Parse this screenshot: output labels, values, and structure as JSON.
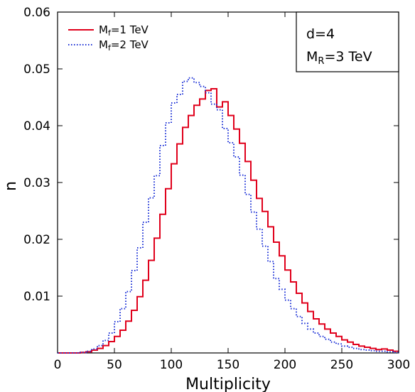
{
  "chart_data": {
    "type": "line",
    "style": "step-histogram",
    "xlabel": "Multiplicity",
    "ylabel": "n",
    "xlim": [
      0,
      300
    ],
    "ylim": [
      0,
      0.06
    ],
    "x_ticks": [
      0,
      50,
      100,
      150,
      200,
      250,
      300
    ],
    "y_ticks": [
      0.01,
      0.02,
      0.03,
      0.04,
      0.05,
      0.06
    ],
    "x_tick_labels": [
      "0",
      "50",
      "100",
      "150",
      "200",
      "250",
      "300"
    ],
    "y_tick_labels": [
      "0.01",
      "0.02",
      "0.03",
      "0.04",
      "0.05",
      "0.06"
    ],
    "grid": false,
    "legend_position": "top-left",
    "bin_width": 5,
    "annotations": {
      "line1": "d=4",
      "line2_main": "M",
      "line2_sub": "R",
      "line2_rest": "=3 TeV"
    },
    "series": [
      {
        "name_main": "M",
        "name_sub": "f",
        "name_rest": "=1 TeV",
        "color": "#e0001b",
        "linestyle": "solid",
        "x": [
          0,
          5,
          10,
          15,
          20,
          25,
          30,
          35,
          40,
          45,
          50,
          55,
          60,
          65,
          70,
          75,
          80,
          85,
          90,
          95,
          100,
          105,
          110,
          115,
          120,
          125,
          130,
          135,
          140,
          145,
          150,
          155,
          160,
          165,
          170,
          175,
          180,
          185,
          190,
          195,
          200,
          205,
          210,
          215,
          220,
          225,
          230,
          235,
          240,
          245,
          250,
          255,
          260,
          265,
          270,
          275,
          280,
          285,
          290,
          295
        ],
        "values": [
          0,
          0,
          0,
          0,
          0.0001,
          0.0002,
          0.0005,
          0.0008,
          0.0013,
          0.002,
          0.0029,
          0.004,
          0.0056,
          0.0075,
          0.0099,
          0.0128,
          0.0163,
          0.0202,
          0.0244,
          0.0289,
          0.0333,
          0.0368,
          0.0397,
          0.0418,
          0.0436,
          0.0447,
          0.0462,
          0.0465,
          0.0433,
          0.0442,
          0.0418,
          0.0394,
          0.0369,
          0.0337,
          0.0304,
          0.0272,
          0.0249,
          0.0222,
          0.0195,
          0.0171,
          0.0146,
          0.0125,
          0.0105,
          0.0088,
          0.0073,
          0.006,
          0.0051,
          0.0042,
          0.0035,
          0.0029,
          0.0023,
          0.0019,
          0.0015,
          0.0012,
          0.001,
          0.0008,
          0.0006,
          0.0007,
          0.0005,
          0.0003
        ]
      },
      {
        "name_main": "M",
        "name_sub": "f",
        "name_rest": "=2 TeV",
        "color": "#1a2fd6",
        "linestyle": "dotted",
        "x": [
          0,
          5,
          10,
          15,
          20,
          25,
          30,
          35,
          40,
          45,
          50,
          55,
          60,
          65,
          70,
          75,
          80,
          85,
          90,
          95,
          100,
          105,
          110,
          115,
          120,
          125,
          130,
          135,
          140,
          145,
          150,
          155,
          160,
          165,
          170,
          175,
          180,
          185,
          190,
          195,
          200,
          205,
          210,
          215,
          220,
          225,
          230,
          235,
          240,
          245,
          250,
          255,
          260,
          265,
          270,
          275,
          280,
          285,
          290,
          295
        ],
        "values": [
          0,
          0,
          0,
          0,
          0.0001,
          0.0003,
          0.0007,
          0.0013,
          0.0022,
          0.0035,
          0.0055,
          0.0078,
          0.0108,
          0.0145,
          0.0185,
          0.023,
          0.0273,
          0.0312,
          0.0365,
          0.0405,
          0.044,
          0.0455,
          0.0478,
          0.0484,
          0.0476,
          0.0469,
          0.0458,
          0.0438,
          0.0428,
          0.0395,
          0.037,
          0.0345,
          0.0313,
          0.0279,
          0.0248,
          0.0218,
          0.0188,
          0.0161,
          0.0131,
          0.0112,
          0.0093,
          0.0078,
          0.0064,
          0.0052,
          0.0042,
          0.0035,
          0.0029,
          0.0024,
          0.0019,
          0.0016,
          0.0012,
          0.001,
          0.0008,
          0.0006,
          0.0005,
          0.0004,
          0.0003,
          0.0003,
          0.0002,
          0.0001
        ]
      }
    ]
  }
}
